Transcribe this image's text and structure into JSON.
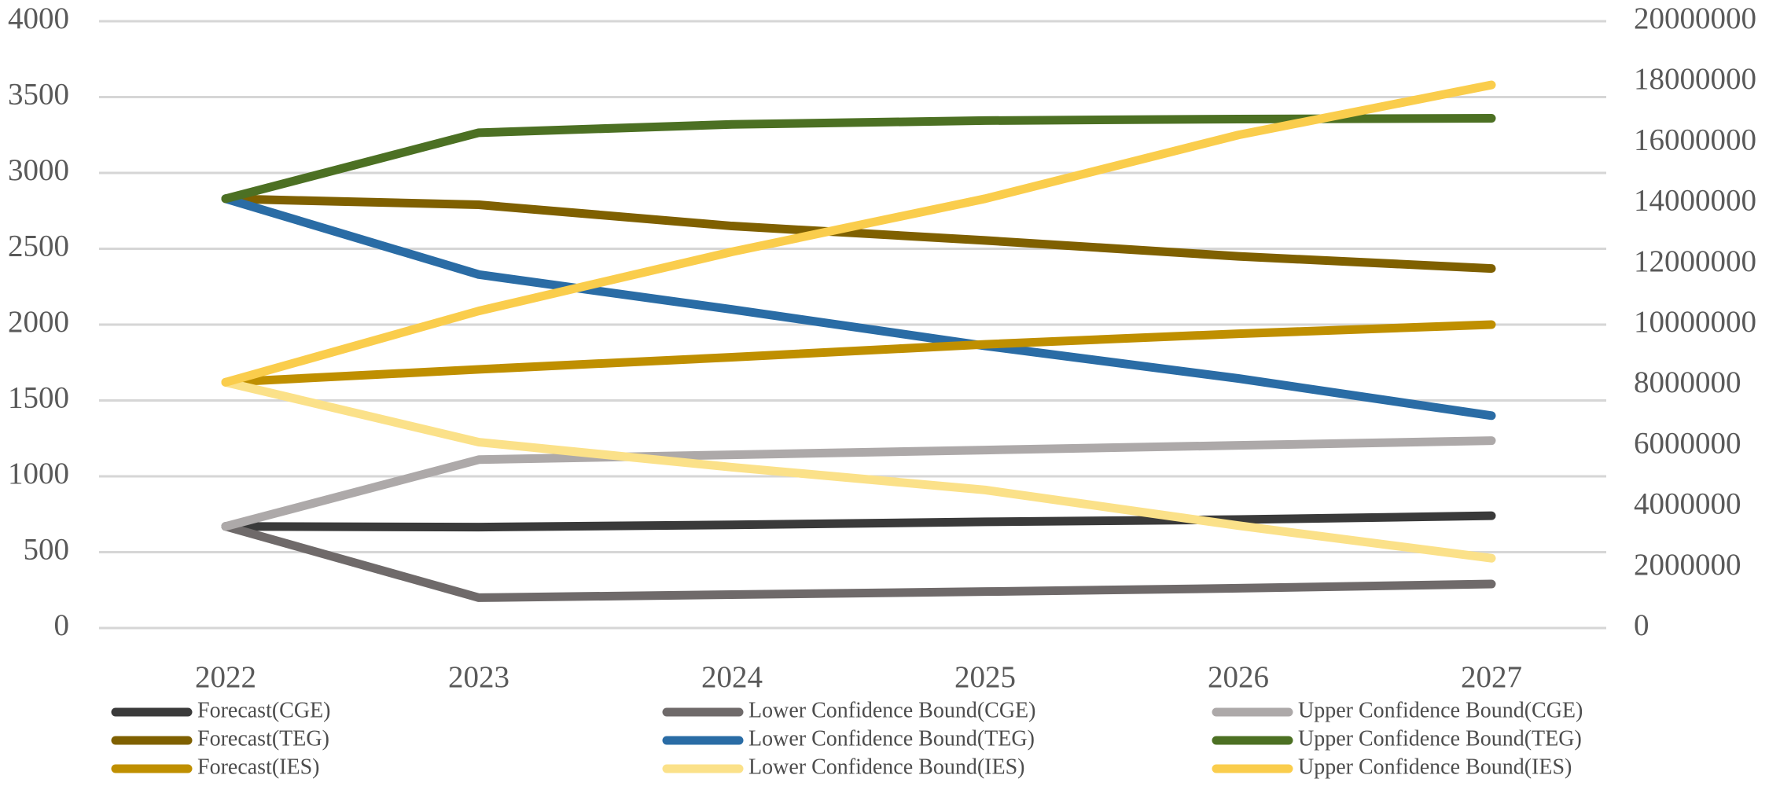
{
  "chart_data": {
    "type": "line",
    "title": "",
    "x_categories": [
      "2022",
      "2023",
      "2024",
      "2025",
      "2026",
      "2027"
    ],
    "left_axis": {
      "min": 0,
      "max": 4000,
      "tick_step": 500,
      "tick_labels_top_to_bottom": [
        "4000",
        "3500",
        "3000",
        "2500",
        "2000",
        "1500",
        "1000",
        "500",
        "0"
      ]
    },
    "right_axis": {
      "min": 0,
      "max": 20000000,
      "tick_step": 2000000,
      "tick_labels_top_to_bottom": [
        "20000000",
        "18000000",
        "16000000",
        "14000000",
        "12000000",
        "10000000",
        "8000000",
        "6000000",
        "4000000",
        "2000000",
        "0"
      ]
    },
    "grid": "horizontal",
    "legend_position": "bottom",
    "series": [
      {
        "key": "forecast_cge",
        "name": "Forecast(CGE)",
        "color": "#3A3A3A",
        "values": [
          670,
          665,
          680,
          700,
          715,
          740
        ]
      },
      {
        "key": "lower_cge",
        "name": "Lower Confidence Bound(CGE)",
        "color": "#6F6A6A",
        "values": [
          670,
          200,
          220,
          240,
          262,
          290
        ]
      },
      {
        "key": "upper_cge",
        "name": "Upper Confidence Bound(CGE)",
        "color": "#ADA9A9",
        "values": [
          670,
          1110,
          1142,
          1173,
          1204,
          1235
        ]
      },
      {
        "key": "forecast_teg",
        "name": "Forecast(TEG)",
        "color": "#7F6000",
        "values": [
          2830,
          2790,
          2650,
          2555,
          2450,
          2370
        ]
      },
      {
        "key": "lower_teg",
        "name": "Lower Confidence Bound(TEG)",
        "color": "#2A6CA5",
        "values": [
          2830,
          2330,
          2100,
          1860,
          1645,
          1400
        ]
      },
      {
        "key": "upper_teg",
        "name": "Upper Confidence Bound(TEG)",
        "color": "#4C7023",
        "values": [
          2830,
          3265,
          3320,
          3345,
          3355,
          3360
        ]
      },
      {
        "key": "forecast_ies",
        "name": "Forecast(IES)",
        "color": "#BF8F00",
        "values": [
          1620,
          1705,
          1785,
          1870,
          1940,
          2000
        ]
      },
      {
        "key": "lower_ies",
        "name": "Lower Confidence Bound(IES)",
        "color": "#FBE189",
        "values": [
          1620,
          1225,
          1060,
          910,
          675,
          460
        ]
      },
      {
        "key": "upper_ies",
        "name": "Upper Confidence Bound(IES)",
        "color": "#FACD4C",
        "values": [
          1620,
          2090,
          2480,
          2830,
          3250,
          3580
        ]
      }
    ],
    "legend_columns": [
      {
        "series_keys": [
          "forecast_cge",
          "forecast_teg",
          "forecast_ies"
        ]
      },
      {
        "series_keys": [
          "lower_cge",
          "lower_teg",
          "lower_ies"
        ]
      },
      {
        "series_keys": [
          "upper_cge",
          "upper_teg",
          "upper_ies"
        ]
      }
    ]
  },
  "style_colors": {
    "background": "#FFFFFF",
    "gridline": "#D6D6D6",
    "axis_text": "#595959",
    "legend_text": "#4D4D4D"
  }
}
